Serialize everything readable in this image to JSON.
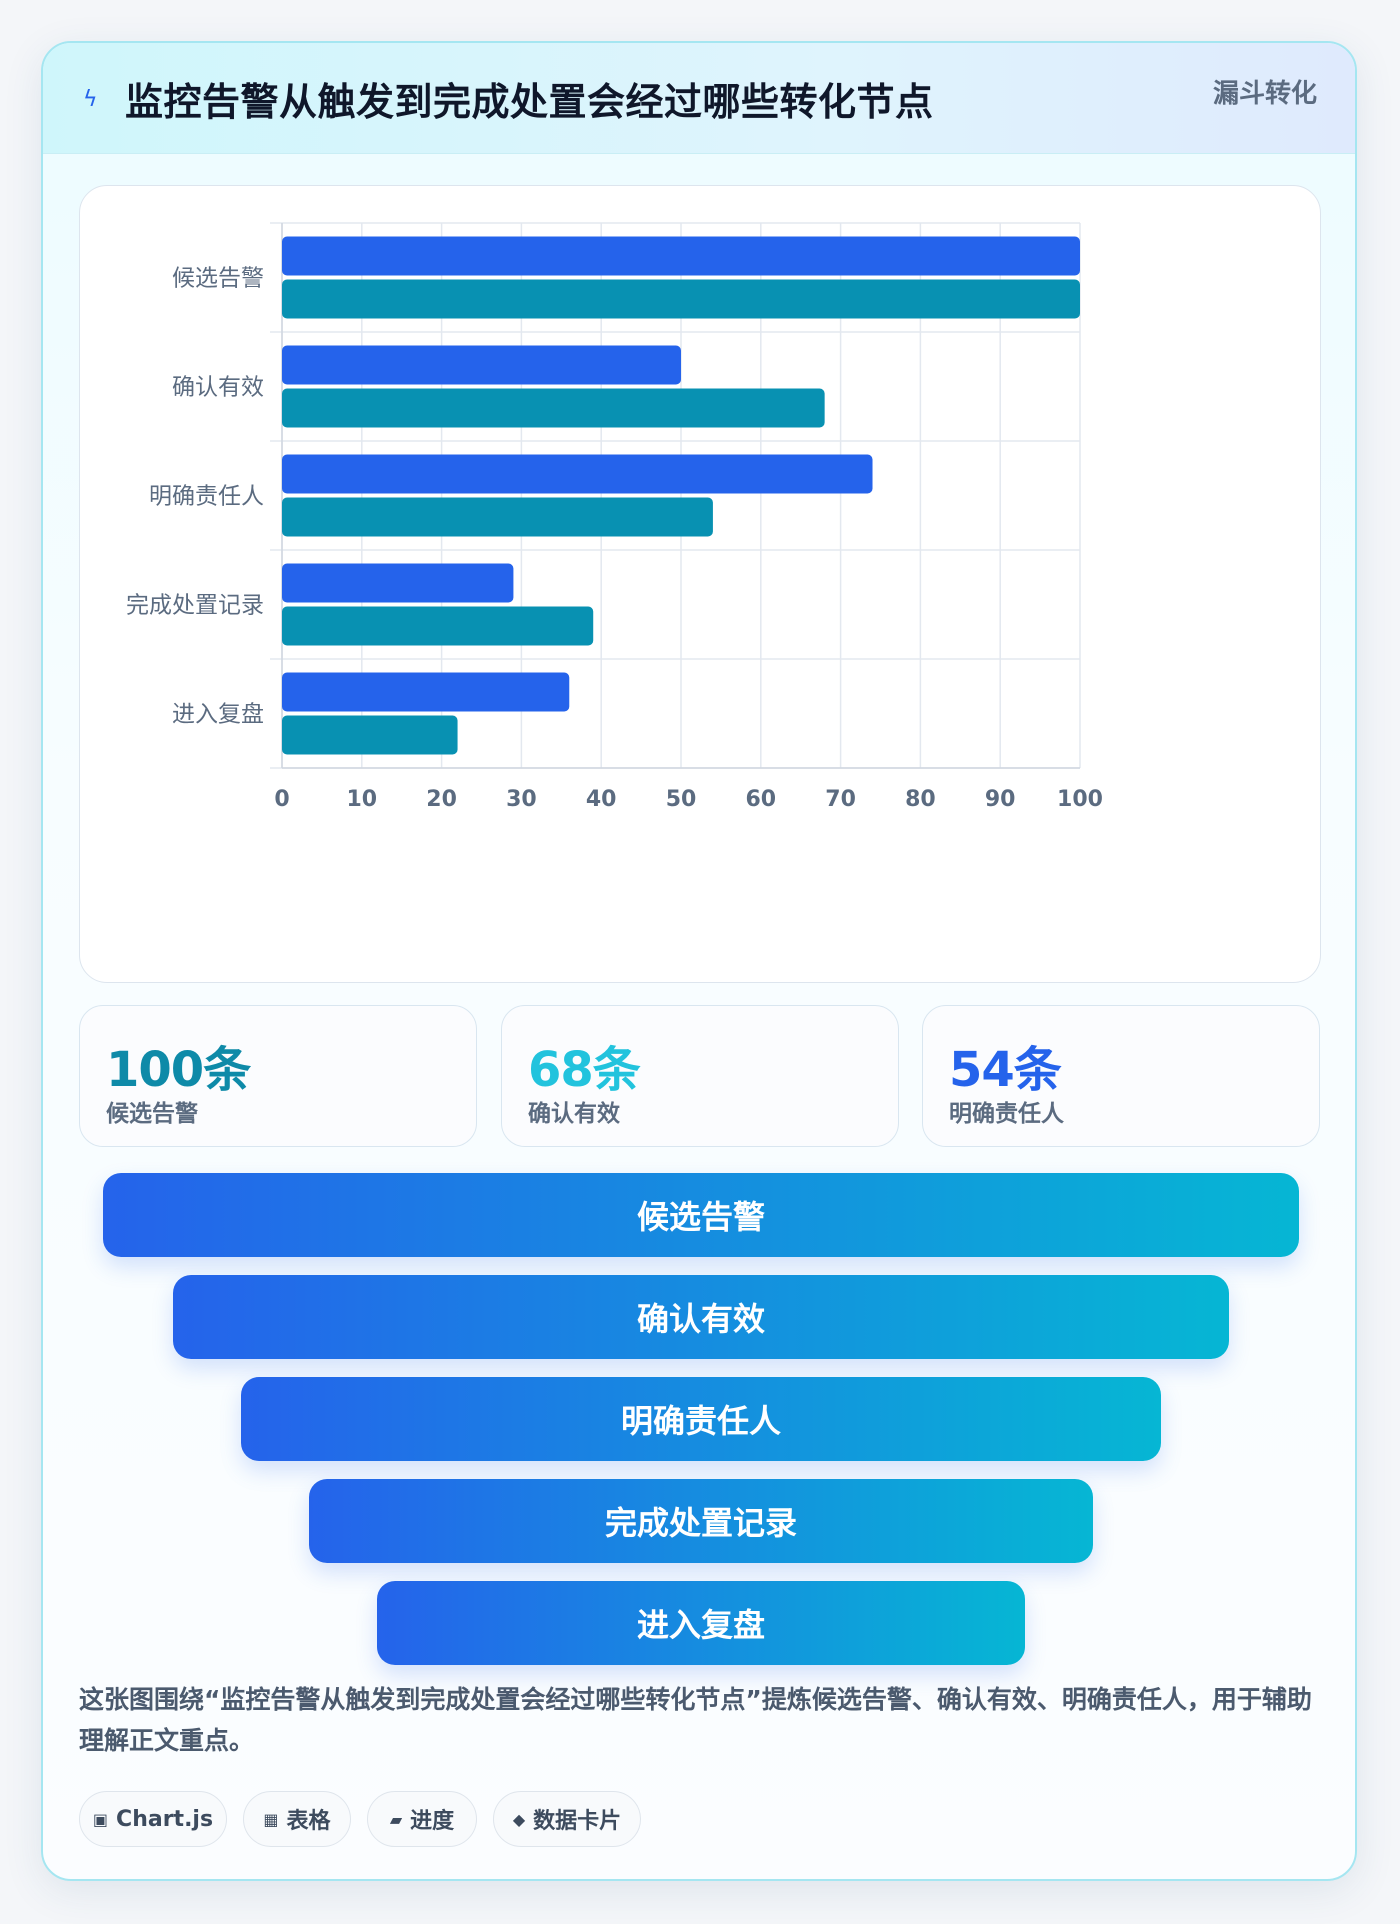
{
  "header": {
    "title": "监控告警从触发到完成处置会经过哪些转化节点",
    "badge": "漏斗转化",
    "icon": "lightning-icon"
  },
  "chart_data": {
    "type": "bar",
    "orientation": "horizontal",
    "categories": [
      "候选告警",
      "确认有效",
      "明确责任人",
      "完成处置记录",
      "进入复盘"
    ],
    "series": [
      {
        "values": [
          100,
          50,
          74,
          29,
          36
        ],
        "color": "#2563eb"
      },
      {
        "values": [
          100,
          68,
          54,
          39,
          22
        ],
        "color": "#0891b2"
      }
    ],
    "xlim": [
      0,
      100
    ],
    "xticks": [
      0,
      10,
      20,
      30,
      40,
      50,
      60,
      70,
      80,
      90,
      100
    ],
    "grid": true
  },
  "stats": [
    {
      "value": "100条",
      "label": "候选告警",
      "color": "#0e8aa8"
    },
    {
      "value": "68条",
      "label": "确认有效",
      "color": "#22c3dd"
    },
    {
      "value": "54条",
      "label": "明确责任人",
      "color": "#2563eb"
    }
  ],
  "funnel": [
    "候选告警",
    "确认有效",
    "明确责任人",
    "完成处置记录",
    "进入复盘"
  ],
  "description": "这张图围绕“监控告警从触发到完成处置会经过哪些转化节点”提炼候选告警、确认有效、明确责任人，用于辅助理解正文重点。",
  "tags": [
    {
      "icon": "▣",
      "label": "Chart.js"
    },
    {
      "icon": "▦",
      "label": "表格"
    },
    {
      "icon": "▰",
      "label": "进度"
    },
    {
      "icon": "◆",
      "label": "数据卡片"
    }
  ]
}
